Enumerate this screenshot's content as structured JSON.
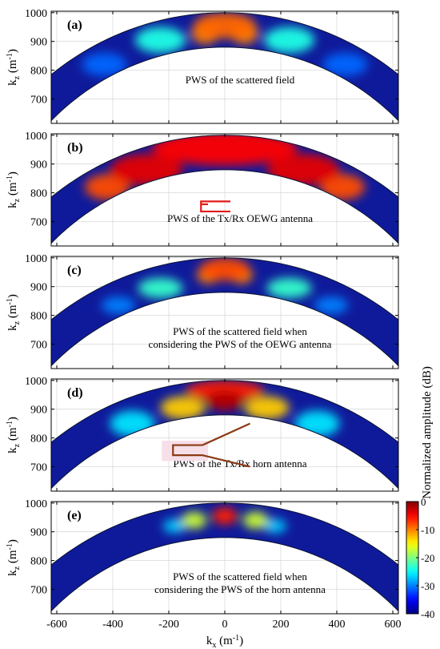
{
  "chart_data": [
    {
      "type": "heatmap",
      "panel_label": "(a)",
      "annotation": "PWS of the scattered field",
      "ylabel": "k",
      "ylabel_sub": "z",
      "ylabel_unit": "(m",
      "ylabel_exp": "-1",
      "ylabel_close": ")",
      "xlim": [
        -620,
        620
      ],
      "ylim": [
        615,
        1005
      ],
      "y_ticks": [
        700,
        800,
        900,
        1000
      ],
      "x_ticks": [
        -600,
        -400,
        -200,
        0,
        200,
        400,
        600
      ],
      "ring_k_outer": 1000,
      "ring_k_inner": 880,
      "grid": true,
      "blobs": [
        {
          "kx": 0,
          "kz": 955,
          "sx": 110,
          "sz": 45,
          "level": -9
        },
        {
          "kx": -70,
          "kz": 930,
          "sx": 50,
          "sz": 40,
          "level": -10
        },
        {
          "kx": 70,
          "kz": 930,
          "sx": 50,
          "sz": 40,
          "level": -10
        },
        {
          "kx": -230,
          "kz": 905,
          "sx": 90,
          "sz": 45,
          "level": -24
        },
        {
          "kx": 230,
          "kz": 905,
          "sx": 90,
          "sz": 45,
          "level": -24
        },
        {
          "kx": -430,
          "kz": 820,
          "sx": 80,
          "sz": 40,
          "level": -31
        },
        {
          "kx": 430,
          "kz": 820,
          "sx": 80,
          "sz": 40,
          "level": -31
        }
      ]
    },
    {
      "type": "heatmap",
      "panel_label": "(b)",
      "annotation": "PWS of the Tx/Rx OEWG antenna",
      "ylabel": "k",
      "ylabel_sub": "z",
      "ylabel_unit": "(m",
      "ylabel_exp": "-1",
      "ylabel_close": ")",
      "xlim": [
        -620,
        620
      ],
      "ylim": [
        615,
        1005
      ],
      "y_ticks": [
        700,
        800,
        900,
        1000
      ],
      "x_ticks": [
        -600,
        -400,
        -200,
        0,
        200,
        400,
        600
      ],
      "ring_k_outer": 1000,
      "ring_k_inner": 880,
      "grid": true,
      "blobs": [
        {
          "kx": 0,
          "kz": 955,
          "sx": 260,
          "sz": 60,
          "level": -5
        },
        {
          "kx": -280,
          "kz": 880,
          "sx": 130,
          "sz": 55,
          "level": -4
        },
        {
          "kx": 280,
          "kz": 880,
          "sx": 130,
          "sz": 55,
          "level": -4
        },
        {
          "kx": -420,
          "kz": 820,
          "sx": 80,
          "sz": 45,
          "level": -8
        },
        {
          "kx": 420,
          "kz": 820,
          "sx": 80,
          "sz": 45,
          "level": -8
        }
      ],
      "icon": "oewg-icon"
    },
    {
      "type": "heatmap",
      "panel_label": "(c)",
      "annotation": [
        "PWS of the scattered field when",
        "considering the PWS of the OEWG antenna"
      ],
      "ylabel": "k",
      "ylabel_sub": "z",
      "ylabel_unit": "(m",
      "ylabel_exp": "-1",
      "ylabel_close": ")",
      "xlim": [
        -620,
        620
      ],
      "ylim": [
        615,
        1005
      ],
      "y_ticks": [
        700,
        800,
        900,
        1000
      ],
      "x_ticks": [
        -600,
        -400,
        -200,
        0,
        200,
        400,
        600
      ],
      "ring_k_outer": 1000,
      "ring_k_inner": 880,
      "grid": true,
      "blobs": [
        {
          "kx": 0,
          "kz": 960,
          "sx": 90,
          "sz": 40,
          "level": -8
        },
        {
          "kx": -60,
          "kz": 940,
          "sx": 40,
          "sz": 30,
          "level": -10
        },
        {
          "kx": 60,
          "kz": 940,
          "sx": 40,
          "sz": 30,
          "level": -10
        },
        {
          "kx": -230,
          "kz": 895,
          "sx": 80,
          "sz": 35,
          "level": -23
        },
        {
          "kx": 230,
          "kz": 895,
          "sx": 80,
          "sz": 35,
          "level": -23
        },
        {
          "kx": -380,
          "kz": 835,
          "sx": 60,
          "sz": 30,
          "level": -30
        },
        {
          "kx": 380,
          "kz": 835,
          "sx": 60,
          "sz": 30,
          "level": -30
        }
      ]
    },
    {
      "type": "heatmap",
      "panel_label": "(d)",
      "annotation": "PWS of the Tx/Rx horn antenna",
      "ylabel": "k",
      "ylabel_sub": "z",
      "ylabel_unit": "(m",
      "ylabel_exp": "-1",
      "ylabel_close": ")",
      "xlim": [
        -620,
        620
      ],
      "ylim": [
        615,
        1005
      ],
      "y_ticks": [
        700,
        800,
        900,
        1000
      ],
      "x_ticks": [
        -600,
        -400,
        -200,
        0,
        200,
        400,
        600
      ],
      "ring_k_outer": 1000,
      "ring_k_inner": 880,
      "grid": true,
      "blobs": [
        {
          "kx": 0,
          "kz": 930,
          "sx": 70,
          "sz": 35,
          "level": -2
        },
        {
          "kx": 0,
          "kz": 965,
          "sx": 140,
          "sz": 35,
          "level": -6
        },
        {
          "kx": -150,
          "kz": 905,
          "sx": 80,
          "sz": 40,
          "level": -13
        },
        {
          "kx": 150,
          "kz": 905,
          "sx": 80,
          "sz": 40,
          "level": -13
        },
        {
          "kx": -330,
          "kz": 850,
          "sx": 80,
          "sz": 45,
          "level": -26
        },
        {
          "kx": 330,
          "kz": 850,
          "sx": 80,
          "sz": 45,
          "level": -26
        }
      ],
      "icon": "horn-icon"
    },
    {
      "type": "heatmap",
      "panel_label": "(e)",
      "annotation": [
        "PWS of the scattered field when",
        "considering the PWS of the horn antenna"
      ],
      "ylabel": "k",
      "ylabel_sub": "z",
      "ylabel_unit": "(m",
      "ylabel_exp": "-1",
      "ylabel_close": ")",
      "xlabel": "k",
      "xlabel_sub": "x",
      "xlabel_unit": "(m",
      "xlabel_exp": "-1",
      "xlabel_close": ")",
      "xlim": [
        -620,
        620
      ],
      "ylim": [
        615,
        1005
      ],
      "y_ticks": [
        700,
        800,
        900,
        1000
      ],
      "x_ticks": [
        -600,
        -400,
        -200,
        0,
        200,
        400,
        600
      ],
      "ring_k_outer": 1000,
      "ring_k_inner": 880,
      "grid": true,
      "blobs": [
        {
          "kx": 0,
          "kz": 955,
          "sx": 45,
          "sz": 30,
          "level": -6
        },
        {
          "kx": -110,
          "kz": 940,
          "sx": 45,
          "sz": 30,
          "level": -17
        },
        {
          "kx": 110,
          "kz": 940,
          "sx": 45,
          "sz": 30,
          "level": -17
        },
        {
          "kx": -180,
          "kz": 920,
          "sx": 40,
          "sz": 25,
          "level": -27
        },
        {
          "kx": 180,
          "kz": 920,
          "sx": 40,
          "sz": 25,
          "level": -27
        }
      ]
    }
  ],
  "colorbar": {
    "label": "Normalized amplitude (dB)",
    "ticks": [
      0,
      -10,
      -20,
      -30,
      -40
    ],
    "range": [
      -40,
      0
    ],
    "colormap": "jet"
  },
  "colors": {
    "background_in_band": "#0f1a9a",
    "icon_red": "#e31a1a",
    "icon_brown": "#8b3a14",
    "grid": "#d9d9d9"
  }
}
